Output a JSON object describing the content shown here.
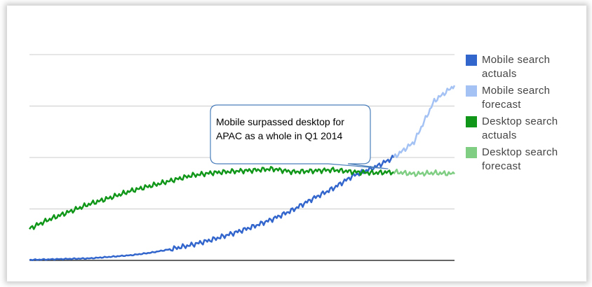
{
  "chart_data": {
    "type": "line",
    "title": "",
    "xlabel": "",
    "ylabel": "",
    "grid": true,
    "legend_position": "right",
    "x": [
      0,
      4,
      8,
      12,
      16,
      20,
      24,
      28,
      32,
      36,
      40,
      44,
      48,
      52,
      56,
      60,
      64,
      68,
      72,
      76,
      80,
      84
    ],
    "series": [
      {
        "name": "Mobile search actuals",
        "color": "#3366cc",
        "values": [
          0.01,
          0.02,
          0.03,
          0.04,
          0.07,
          0.1,
          0.15,
          0.22,
          0.3,
          0.4,
          0.52,
          0.65,
          0.8,
          0.98,
          1.2,
          1.4,
          1.65,
          1.8,
          2.0,
          null,
          null,
          null
        ]
      },
      {
        "name": "Mobile search forecast",
        "color": "#a4c2f4",
        "values": [
          null,
          null,
          null,
          null,
          null,
          null,
          null,
          null,
          null,
          null,
          null,
          null,
          null,
          null,
          null,
          null,
          null,
          null,
          2.0,
          2.3,
          3.1,
          3.4
        ]
      },
      {
        "name": "Desktop search actuals",
        "color": "#109618",
        "values": [
          0.62,
          0.8,
          0.95,
          1.1,
          1.22,
          1.35,
          1.45,
          1.55,
          1.65,
          1.7,
          1.73,
          1.75,
          1.78,
          1.72,
          1.74,
          1.76,
          1.72,
          1.7,
          1.72,
          null,
          null,
          null
        ]
      },
      {
        "name": "Desktop search forecast",
        "color": "#7fce83",
        "values": [
          null,
          null,
          null,
          null,
          null,
          null,
          null,
          null,
          null,
          null,
          null,
          null,
          null,
          null,
          null,
          null,
          null,
          null,
          1.72,
          1.68,
          1.7,
          1.68
        ]
      }
    ],
    "annotation": "Mobile surpassed desktop for APAC as a whole in Q1 2014"
  }
}
